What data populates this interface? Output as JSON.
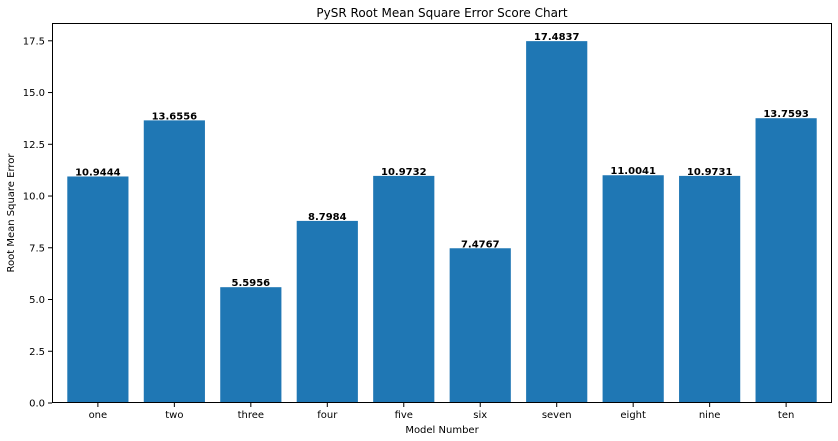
{
  "chart_data": {
    "type": "bar",
    "title": "PySR Root Mean Square Error Score Chart",
    "xlabel": "Model Number",
    "ylabel": "Root Mean Square Error",
    "categories": [
      "one",
      "two",
      "three",
      "four",
      "five",
      "six",
      "seven",
      "eight",
      "nine",
      "ten"
    ],
    "values": [
      10.9444,
      13.6556,
      5.5956,
      8.7984,
      10.9732,
      7.4767,
      17.4837,
      11.0041,
      10.9731,
      13.7593
    ],
    "value_labels": [
      "10.9444",
      "13.6556",
      "5.5956",
      "8.7984",
      "10.9732",
      "7.4767",
      "17.4837",
      "11.0041",
      "10.9731",
      "13.7593"
    ],
    "ylim": [
      0,
      18.36
    ],
    "yticks": [
      0.0,
      2.5,
      5.0,
      7.5,
      10.0,
      12.5,
      15.0,
      17.5
    ],
    "ytick_labels": [
      "0.0",
      "2.5",
      "5.0",
      "7.5",
      "10.0",
      "12.5",
      "15.0",
      "17.5"
    ],
    "bar_color": "#1f77b4",
    "grid": false,
    "legend": false
  }
}
